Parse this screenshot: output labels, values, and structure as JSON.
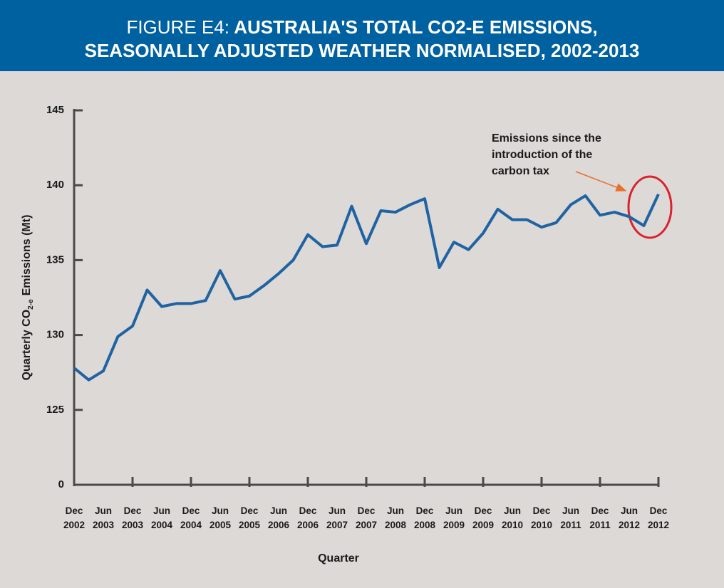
{
  "chart_data": {
    "type": "line",
    "figure_label": "FIGURE E4:",
    "title_lines": [
      "AUSTRALIA'S TOTAL CO2-E EMISSIONS,",
      "SEASONALLY ADJUSTED WEATHER NORMALISED, 2002-2013"
    ],
    "ylabel": {
      "text": "Quarterly CO",
      "subscript": "2-e",
      "after": "Emissions (Mt)"
    },
    "xlabel": "Quarter",
    "annotation": [
      "Emissions since the",
      "introduction of the",
      "carbon tax"
    ],
    "categories": [
      "Dec 2002",
      null,
      "Jun 2003",
      null,
      "Dec 2003",
      null,
      "Jun 2004",
      null,
      "Dec 2004",
      null,
      "Jun 2005",
      null,
      "Dec 2005",
      null,
      "Jun 2006",
      null,
      "Dec 2006",
      null,
      "Jun 2007",
      null,
      "Dec 2007",
      null,
      "Jun 2008",
      null,
      "Dec 2008",
      null,
      "Jun 2009",
      null,
      "Dec 2009",
      null,
      "Jun 2010",
      null,
      "Dec 2010",
      null,
      "Jun 2011",
      null,
      "Dec 2011",
      null,
      "Jun 2012",
      null,
      "Dec 2012"
    ],
    "values": [
      127.8,
      127.0,
      127.6,
      129.9,
      130.6,
      133.0,
      131.9,
      132.1,
      132.1,
      132.3,
      134.3,
      132.4,
      132.6,
      133.3,
      134.1,
      135.0,
      136.7,
      135.9,
      136.0,
      138.6,
      136.1,
      138.3,
      138.2,
      138.7,
      139.1,
      134.5,
      136.2,
      135.7,
      136.8,
      138.4,
      137.7,
      137.7,
      137.2,
      137.5,
      138.7,
      139.3,
      138.0,
      138.2,
      137.9,
      137.3,
      139.4
    ],
    "color": "#1f63a3",
    "ylim": [
      0,
      145
    ],
    "yticks": [
      0,
      125,
      130,
      135,
      140,
      145
    ],
    "y_axis_break": true
  }
}
